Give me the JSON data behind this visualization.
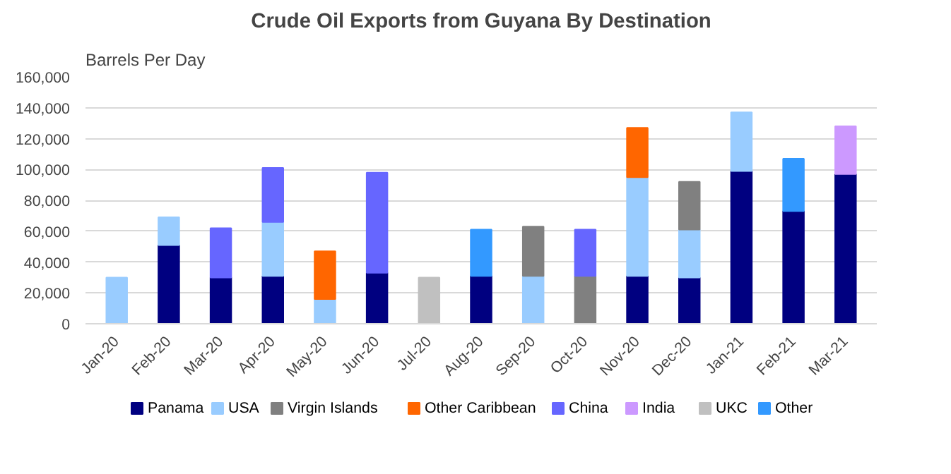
{
  "chart_data": {
    "type": "bar",
    "stacked": true,
    "title": "Crude Oil Exports from Guyana By Destination",
    "ylabel": "Barrels Per Day",
    "categories": [
      "Jan-20",
      "Feb-20",
      "Mar-20",
      "Apr-20",
      "May-20",
      "Jun-20",
      "Jul-20",
      "Aug-20",
      "Sep-20",
      "Oct-20",
      "Nov-20",
      "Dec-20",
      "Jan-21",
      "Feb-21",
      "Mar-21"
    ],
    "series": [
      {
        "name": "Panama",
        "color": "#000080",
        "values": [
          null,
          51000,
          30000,
          31000,
          null,
          33000,
          null,
          31000,
          null,
          null,
          31000,
          30000,
          99000,
          73000,
          97000
        ]
      },
      {
        "name": "USA",
        "color": "#99ccff",
        "values": [
          30000,
          18000,
          null,
          35000,
          16000,
          null,
          null,
          null,
          31000,
          null,
          64000,
          31000,
          38000,
          null,
          null
        ]
      },
      {
        "name": "Virgin Islands",
        "color": "#808080",
        "values": [
          null,
          null,
          null,
          null,
          null,
          null,
          null,
          null,
          32000,
          31000,
          null,
          31000,
          null,
          null,
          null
        ]
      },
      {
        "name": "Other Caribbean",
        "color": "#ff6600",
        "values": [
          null,
          null,
          null,
          null,
          31000,
          null,
          null,
          null,
          null,
          null,
          32000,
          null,
          null,
          null,
          null
        ]
      },
      {
        "name": "China",
        "color": "#6666ff",
        "values": [
          null,
          null,
          32000,
          35000,
          null,
          65000,
          null,
          null,
          null,
          30000,
          null,
          null,
          null,
          null,
          null
        ]
      },
      {
        "name": "India",
        "color": "#cc99ff",
        "values": [
          null,
          null,
          null,
          null,
          null,
          null,
          null,
          null,
          null,
          null,
          null,
          null,
          null,
          null,
          31000
        ]
      },
      {
        "name": "UKC",
        "color": "#c0c0c0",
        "values": [
          null,
          null,
          null,
          null,
          null,
          null,
          30000,
          null,
          null,
          null,
          null,
          null,
          null,
          null,
          null
        ]
      },
      {
        "name": "Other",
        "color": "#3399ff",
        "values": [
          null,
          null,
          null,
          null,
          null,
          null,
          null,
          30000,
          null,
          null,
          null,
          null,
          null,
          34000,
          null
        ]
      }
    ],
    "ylim": [
      0,
      160000
    ],
    "yticks": [
      {
        "value": 0,
        "label": "0"
      },
      {
        "value": 20000,
        "label": "20,000"
      },
      {
        "value": 40000,
        "label": "40,000"
      },
      {
        "value": 60000,
        "label": "60,000"
      },
      {
        "value": 80000,
        "label": "80,000"
      },
      {
        "value": 100000,
        "label": "100,000"
      },
      {
        "value": 120000,
        "label": "120,000"
      },
      {
        "value": 140000,
        "label": "140,000"
      },
      {
        "value": 160000,
        "label": "160,000"
      }
    ],
    "grid": "y",
    "legend": "bottom"
  }
}
